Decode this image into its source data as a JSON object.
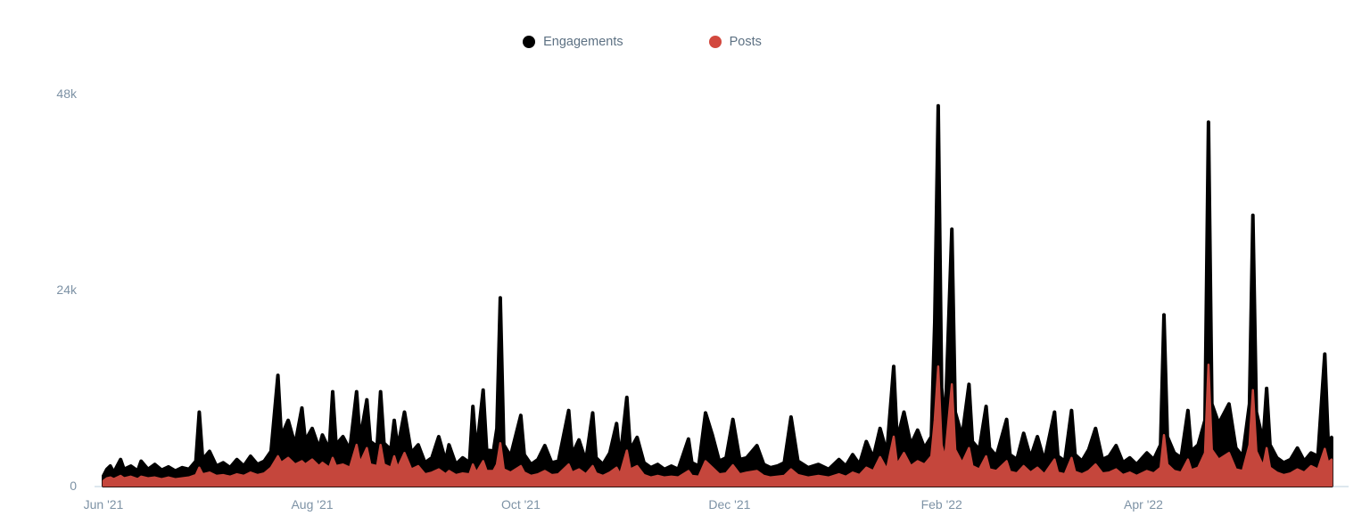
{
  "legend": {
    "items": [
      {
        "label": "Engagements",
        "color": "#000000"
      },
      {
        "label": "Posts",
        "color": "#d2483e"
      }
    ]
  },
  "colors": {
    "engagements_area": "#000000",
    "posts_area": "#c5463c",
    "axis_label": "#7d92a5",
    "legend_label": "#5d7183",
    "axis_line": "#dde7ee"
  },
  "chart_data": {
    "type": "area",
    "title": "",
    "xlabel": "",
    "ylabel": "",
    "grid": false,
    "legend_position": "top-center",
    "x_unit": "days since Jun 1 2021",
    "value_unit": "thousands",
    "ylim": [
      0,
      48
    ],
    "y_ticks": [
      {
        "value": 0,
        "label": "0"
      },
      {
        "value": 24,
        "label": "24k"
      },
      {
        "value": 48,
        "label": "48k"
      }
    ],
    "x_ticks": [
      {
        "day": 0,
        "label": "Jun '21"
      },
      {
        "day": 61,
        "label": "Aug '21"
      },
      {
        "day": 122,
        "label": "Oct '21"
      },
      {
        "day": 183,
        "label": "Dec '21"
      },
      {
        "day": 245,
        "label": "Feb '22"
      },
      {
        "day": 304,
        "label": "Apr '22"
      }
    ],
    "series_names": [
      "Engagements",
      "Posts"
    ],
    "rows_format": [
      "day",
      "engagements_k",
      "posts_k"
    ],
    "rows": [
      [
        0,
        1.2,
        0.6
      ],
      [
        1,
        2.0,
        0.9
      ],
      [
        2,
        2.4,
        1.0
      ],
      [
        3,
        1.6,
        0.8
      ],
      [
        5,
        3.2,
        1.2
      ],
      [
        6,
        2.0,
        0.9
      ],
      [
        8,
        2.4,
        1.1
      ],
      [
        10,
        1.8,
        0.8
      ],
      [
        11,
        3.0,
        1.1
      ],
      [
        13,
        2.0,
        0.9
      ],
      [
        15,
        2.6,
        1.0
      ],
      [
        17,
        1.9,
        0.8
      ],
      [
        19,
        2.3,
        1.0
      ],
      [
        21,
        1.8,
        0.8
      ],
      [
        23,
        2.2,
        0.9
      ],
      [
        25,
        2.0,
        1.0
      ],
      [
        27,
        3.0,
        1.3
      ],
      [
        28,
        9.0,
        2.2
      ],
      [
        29,
        3.2,
        1.4
      ],
      [
        31,
        4.2,
        1.6
      ],
      [
        33,
        2.4,
        1.2
      ],
      [
        35,
        2.8,
        1.3
      ],
      [
        37,
        2.2,
        1.1
      ],
      [
        39,
        3.2,
        1.4
      ],
      [
        41,
        2.4,
        1.2
      ],
      [
        43,
        3.6,
        1.6
      ],
      [
        45,
        2.6,
        1.3
      ],
      [
        47,
        3.0,
        1.5
      ],
      [
        49,
        4.2,
        2.2
      ],
      [
        51,
        13.5,
        3.6
      ],
      [
        52,
        6.0,
        2.8
      ],
      [
        54,
        8.0,
        3.4
      ],
      [
        56,
        5.0,
        2.6
      ],
      [
        58,
        9.5,
        3.0
      ],
      [
        59,
        5.5,
        2.6
      ],
      [
        61,
        7.0,
        3.2
      ],
      [
        63,
        4.6,
        2.4
      ],
      [
        64,
        6.2,
        2.8
      ],
      [
        66,
        4.4,
        2.2
      ],
      [
        67,
        11.5,
        3.4
      ],
      [
        68,
        5.0,
        2.4
      ],
      [
        70,
        6.0,
        2.6
      ],
      [
        72,
        4.4,
        2.2
      ],
      [
        74,
        11.5,
        5.0
      ],
      [
        75,
        5.6,
        2.8
      ],
      [
        77,
        10.5,
        4.6
      ],
      [
        78,
        5.4,
        2.6
      ],
      [
        80,
        4.8,
        2.4
      ],
      [
        81,
        11.5,
        5.0
      ],
      [
        82,
        5.2,
        2.6
      ],
      [
        84,
        4.4,
        2.2
      ],
      [
        85,
        8.0,
        3.6
      ],
      [
        86,
        4.6,
        2.2
      ],
      [
        88,
        9.0,
        4.0
      ],
      [
        90,
        4.0,
        2.0
      ],
      [
        92,
        5.0,
        2.4
      ],
      [
        94,
        2.8,
        1.4
      ],
      [
        96,
        3.4,
        1.6
      ],
      [
        98,
        6.0,
        2.0
      ],
      [
        100,
        3.0,
        1.4
      ],
      [
        101,
        5.0,
        1.8
      ],
      [
        103,
        2.6,
        1.3
      ],
      [
        105,
        3.4,
        1.5
      ],
      [
        107,
        2.8,
        1.4
      ],
      [
        108,
        9.7,
        2.6
      ],
      [
        109,
        4.0,
        1.6
      ],
      [
        111,
        11.7,
        3.0
      ],
      [
        112,
        4.4,
        1.8
      ],
      [
        114,
        4.2,
        1.8
      ],
      [
        115,
        7.0,
        2.6
      ],
      [
        116,
        23.0,
        5.2
      ],
      [
        117,
        5.0,
        2.0
      ],
      [
        119,
        3.6,
        1.6
      ],
      [
        122,
        8.6,
        2.4
      ],
      [
        123,
        3.8,
        1.6
      ],
      [
        125,
        2.6,
        1.2
      ],
      [
        127,
        3.2,
        1.4
      ],
      [
        129,
        4.9,
        1.8
      ],
      [
        131,
        2.8,
        1.3
      ],
      [
        133,
        3.0,
        1.4
      ],
      [
        136,
        9.2,
        2.6
      ],
      [
        137,
        3.8,
        1.6
      ],
      [
        139,
        5.6,
        2.0
      ],
      [
        141,
        3.0,
        1.4
      ],
      [
        143,
        8.9,
        2.4
      ],
      [
        144,
        3.4,
        1.5
      ],
      [
        146,
        2.6,
        1.2
      ],
      [
        148,
        4.0,
        1.6
      ],
      [
        150,
        7.6,
        2.2
      ],
      [
        151,
        3.2,
        1.4
      ],
      [
        153,
        10.8,
        4.3
      ],
      [
        154,
        4.4,
        2.0
      ],
      [
        156,
        5.9,
        2.4
      ],
      [
        158,
        2.8,
        1.3
      ],
      [
        160,
        2.2,
        1.0
      ],
      [
        162,
        2.6,
        1.2
      ],
      [
        164,
        2.0,
        1.0
      ],
      [
        166,
        2.4,
        1.1
      ],
      [
        168,
        2.0,
        1.0
      ],
      [
        171,
        5.7,
        1.8
      ],
      [
        172,
        2.8,
        1.2
      ],
      [
        174,
        2.4,
        1.1
      ],
      [
        176,
        8.9,
        3.0
      ],
      [
        178,
        6.2,
        2.2
      ],
      [
        180,
        3.0,
        1.4
      ],
      [
        182,
        3.4,
        1.5
      ],
      [
        184,
        8.1,
        2.5
      ],
      [
        186,
        3.2,
        1.4
      ],
      [
        188,
        3.4,
        1.6
      ],
      [
        191,
        4.9,
        1.8
      ],
      [
        193,
        2.6,
        1.2
      ],
      [
        195,
        2.2,
        1.0
      ],
      [
        197,
        2.4,
        1.1
      ],
      [
        199,
        2.8,
        1.2
      ],
      [
        201,
        8.4,
        2.0
      ],
      [
        203,
        3.0,
        1.3
      ],
      [
        206,
        2.2,
        1.0
      ],
      [
        209,
        2.6,
        1.2
      ],
      [
        212,
        2.0,
        1.0
      ],
      [
        215,
        3.2,
        1.4
      ],
      [
        217,
        2.4,
        1.1
      ],
      [
        219,
        3.8,
        1.6
      ],
      [
        221,
        2.6,
        1.3
      ],
      [
        223,
        5.4,
        2.2
      ],
      [
        225,
        3.4,
        1.8
      ],
      [
        227,
        7.0,
        3.5
      ],
      [
        229,
        4.0,
        2.0
      ],
      [
        231,
        14.6,
        6.0
      ],
      [
        232,
        5.6,
        2.6
      ],
      [
        234,
        9.0,
        4.0
      ],
      [
        236,
        5.0,
        2.4
      ],
      [
        238,
        6.8,
        3.0
      ],
      [
        240,
        4.6,
        2.6
      ],
      [
        242,
        6.0,
        3.6
      ],
      [
        243,
        20.0,
        8.0
      ],
      [
        244,
        46.5,
        14.6
      ],
      [
        245,
        12.0,
        5.0
      ],
      [
        246,
        7.0,
        3.4
      ],
      [
        248,
        31.4,
        12.4
      ],
      [
        249,
        9.0,
        4.4
      ],
      [
        251,
        6.0,
        2.8
      ],
      [
        253,
        12.4,
        4.6
      ],
      [
        254,
        5.4,
        2.4
      ],
      [
        256,
        4.4,
        2.0
      ],
      [
        258,
        9.7,
        3.6
      ],
      [
        259,
        4.6,
        2.0
      ],
      [
        261,
        3.6,
        1.8
      ],
      [
        264,
        8.1,
        3.0
      ],
      [
        265,
        3.8,
        1.7
      ],
      [
        267,
        3.2,
        1.5
      ],
      [
        269,
        6.4,
        2.4
      ],
      [
        271,
        3.4,
        1.6
      ],
      [
        273,
        6.0,
        2.2
      ],
      [
        275,
        3.0,
        1.4
      ],
      [
        278,
        9.0,
        3.2
      ],
      [
        279,
        3.6,
        1.6
      ],
      [
        281,
        3.0,
        1.4
      ],
      [
        283,
        9.2,
        3.4
      ],
      [
        284,
        3.8,
        1.7
      ],
      [
        286,
        3.0,
        1.4
      ],
      [
        288,
        4.4,
        1.8
      ],
      [
        290,
        7.0,
        2.6
      ],
      [
        292,
        3.2,
        1.5
      ],
      [
        294,
        3.6,
        1.6
      ],
      [
        296,
        4.9,
        2.0
      ],
      [
        298,
        2.8,
        1.3
      ],
      [
        300,
        3.4,
        1.6
      ],
      [
        302,
        2.6,
        1.2
      ],
      [
        305,
        4.0,
        1.8
      ],
      [
        307,
        3.2,
        1.5
      ],
      [
        309,
        5.0,
        2.2
      ],
      [
        310,
        20.9,
        6.2
      ],
      [
        311,
        6.0,
        2.6
      ],
      [
        313,
        4.0,
        1.8
      ],
      [
        315,
        3.4,
        1.6
      ],
      [
        317,
        9.2,
        3.2
      ],
      [
        318,
        4.2,
        1.9
      ],
      [
        320,
        5.0,
        2.2
      ],
      [
        322,
        8.0,
        4.0
      ],
      [
        323,
        44.5,
        14.8
      ],
      [
        324,
        10.0,
        4.4
      ],
      [
        326,
        7.6,
        3.2
      ],
      [
        329,
        10.0,
        4.0
      ],
      [
        331,
        4.6,
        2.0
      ],
      [
        333,
        3.6,
        1.8
      ],
      [
        335,
        10.0,
        5.0
      ],
      [
        336,
        33.1,
        11.7
      ],
      [
        337,
        9.0,
        4.2
      ],
      [
        339,
        5.4,
        2.4
      ],
      [
        340,
        11.9,
        4.6
      ],
      [
        341,
        5.0,
        2.2
      ],
      [
        343,
        3.4,
        1.6
      ],
      [
        345,
        2.8,
        1.3
      ],
      [
        347,
        3.2,
        1.5
      ],
      [
        349,
        4.6,
        2.0
      ],
      [
        351,
        3.0,
        1.6
      ],
      [
        353,
        4.0,
        2.4
      ],
      [
        355,
        3.6,
        2.0
      ],
      [
        357,
        16.1,
        4.5
      ],
      [
        358,
        5.4,
        2.8
      ],
      [
        359,
        5.9,
        3.2
      ]
    ]
  }
}
